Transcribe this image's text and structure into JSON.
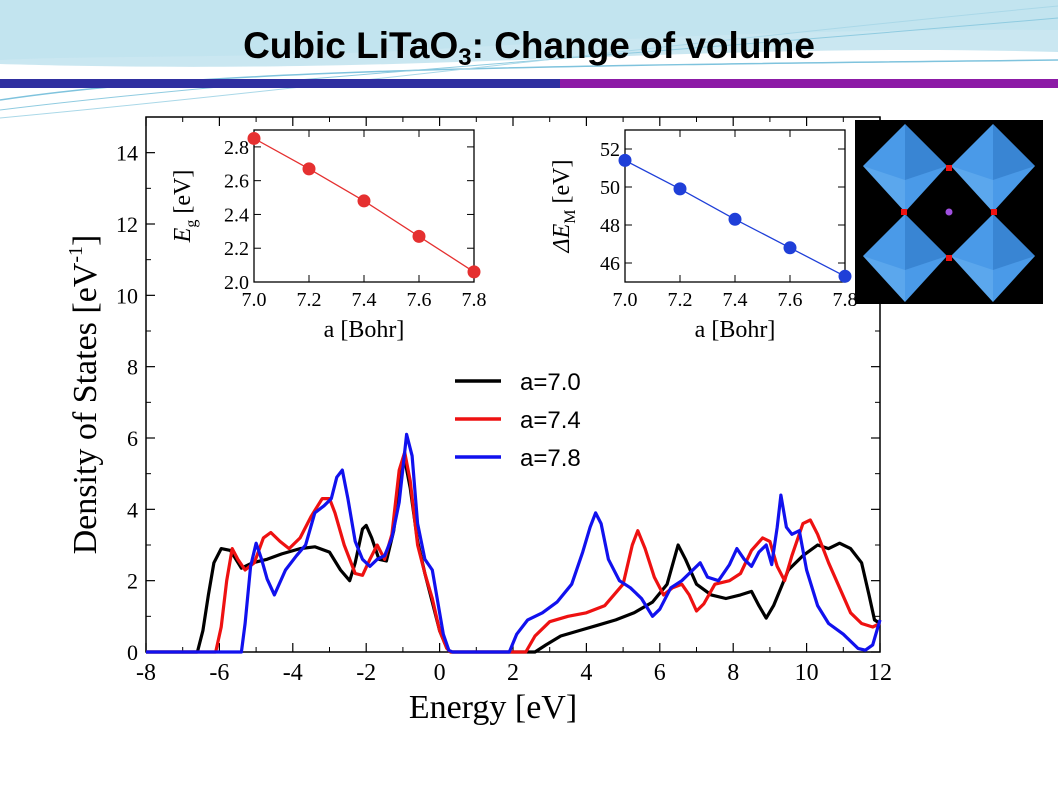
{
  "slide": {
    "title_main": "Cubic LiTaO",
    "title_sub": "3",
    "title_rest": ": Change of volume"
  },
  "colors": {
    "a70": "#000000",
    "a74": "#ee1111",
    "a78": "#1111ee",
    "inset_red": "#e53030",
    "inset_blue": "#1f3fd8",
    "bar_blue": "#2f2fa0",
    "bar_purple": "#8c1aa6",
    "octahedron": "#4a9ae8",
    "structure_bg": "#000000"
  },
  "chart_data": [
    {
      "type": "line",
      "title": "",
      "xlabel": "Energy  [eV]",
      "ylabel": "Density of States  [eV",
      "ylabel_sup": "-1",
      "ylabel_close": "]",
      "xlim": [
        -8,
        12
      ],
      "ylim": [
        0,
        15
      ],
      "xticks": [
        "-8",
        "-6",
        "-4",
        "-2",
        "0",
        "2",
        "4",
        "6",
        "8",
        "10",
        "12"
      ],
      "yticks": [
        "0",
        "2",
        "4",
        "6",
        "8",
        "10",
        "12",
        "14"
      ],
      "legend": "center",
      "series": [
        {
          "name": "a=7.0",
          "color_key": "a70",
          "points": [
            [
              -8,
              0
            ],
            [
              -6.6,
              0
            ],
            [
              -6.45,
              0.6
            ],
            [
              -6.3,
              1.6
            ],
            [
              -6.15,
              2.5
            ],
            [
              -5.95,
              2.9
            ],
            [
              -5.7,
              2.85
            ],
            [
              -5.4,
              2.35
            ],
            [
              -5.1,
              2.5
            ],
            [
              -4.7,
              2.6
            ],
            [
              -4.3,
              2.75
            ],
            [
              -3.8,
              2.9
            ],
            [
              -3.4,
              2.95
            ],
            [
              -3.0,
              2.8
            ],
            [
              -2.7,
              2.3
            ],
            [
              -2.45,
              2.0
            ],
            [
              -2.3,
              2.5
            ],
            [
              -2.1,
              3.45
            ],
            [
              -2.0,
              3.55
            ],
            [
              -1.85,
              3.2
            ],
            [
              -1.65,
              2.6
            ],
            [
              -1.45,
              2.55
            ],
            [
              -1.25,
              3.4
            ],
            [
              -1.05,
              5.0
            ],
            [
              -0.95,
              5.4
            ],
            [
              -0.8,
              4.6
            ],
            [
              -0.6,
              3.1
            ],
            [
              -0.4,
              2.2
            ],
            [
              -0.2,
              1.4
            ],
            [
              0,
              0.6
            ],
            [
              0.2,
              0.1
            ],
            [
              0.3,
              0
            ],
            [
              2.6,
              0
            ],
            [
              2.9,
              0.2
            ],
            [
              3.3,
              0.45
            ],
            [
              3.8,
              0.6
            ],
            [
              4.3,
              0.75
            ],
            [
              4.8,
              0.9
            ],
            [
              5.3,
              1.1
            ],
            [
              5.8,
              1.4
            ],
            [
              6.2,
              1.9
            ],
            [
              6.5,
              3.0
            ],
            [
              6.7,
              2.6
            ],
            [
              7.0,
              1.9
            ],
            [
              7.4,
              1.6
            ],
            [
              7.8,
              1.5
            ],
            [
              8.2,
              1.6
            ],
            [
              8.5,
              1.7
            ],
            [
              8.7,
              1.3
            ],
            [
              8.9,
              0.95
            ],
            [
              9.1,
              1.3
            ],
            [
              9.5,
              2.3
            ],
            [
              9.9,
              2.7
            ],
            [
              10.3,
              3.0
            ],
            [
              10.6,
              2.9
            ],
            [
              10.9,
              3.05
            ],
            [
              11.2,
              2.9
            ],
            [
              11.5,
              2.5
            ],
            [
              11.7,
              1.6
            ],
            [
              11.85,
              0.9
            ],
            [
              12,
              0.8
            ]
          ]
        },
        {
          "name": "a=7.4",
          "color_key": "a74",
          "points": [
            [
              -8,
              0
            ],
            [
              -6.1,
              0
            ],
            [
              -5.95,
              0.7
            ],
            [
              -5.8,
              2.0
            ],
            [
              -5.65,
              2.9
            ],
            [
              -5.5,
              2.6
            ],
            [
              -5.3,
              2.3
            ],
            [
              -5.05,
              2.5
            ],
            [
              -4.8,
              3.2
            ],
            [
              -4.6,
              3.35
            ],
            [
              -4.35,
              3.1
            ],
            [
              -4.1,
              2.9
            ],
            [
              -3.8,
              3.2
            ],
            [
              -3.5,
              3.8
            ],
            [
              -3.2,
              4.3
            ],
            [
              -3.0,
              4.3
            ],
            [
              -2.85,
              3.9
            ],
            [
              -2.6,
              3.0
            ],
            [
              -2.3,
              2.2
            ],
            [
              -2.1,
              2.15
            ],
            [
              -1.9,
              2.6
            ],
            [
              -1.7,
              3.0
            ],
            [
              -1.5,
              2.6
            ],
            [
              -1.3,
              3.3
            ],
            [
              -1.1,
              5.1
            ],
            [
              -0.95,
              5.6
            ],
            [
              -0.8,
              4.8
            ],
            [
              -0.6,
              3.0
            ],
            [
              -0.4,
              2.2
            ],
            [
              -0.2,
              1.5
            ],
            [
              0,
              0.6
            ],
            [
              0.2,
              0.1
            ],
            [
              0.3,
              0
            ],
            [
              2.35,
              0
            ],
            [
              2.6,
              0.45
            ],
            [
              3.0,
              0.85
            ],
            [
              3.5,
              1.0
            ],
            [
              4.0,
              1.1
            ],
            [
              4.5,
              1.3
            ],
            [
              5.0,
              1.9
            ],
            [
              5.25,
              3.0
            ],
            [
              5.4,
              3.4
            ],
            [
              5.6,
              2.9
            ],
            [
              5.85,
              2.1
            ],
            [
              6.1,
              1.6
            ],
            [
              6.35,
              1.8
            ],
            [
              6.6,
              1.9
            ],
            [
              6.8,
              1.6
            ],
            [
              7.0,
              1.15
            ],
            [
              7.2,
              1.35
            ],
            [
              7.5,
              1.9
            ],
            [
              7.9,
              2.0
            ],
            [
              8.2,
              2.2
            ],
            [
              8.5,
              2.85
            ],
            [
              8.8,
              3.2
            ],
            [
              9.0,
              3.1
            ],
            [
              9.2,
              2.4
            ],
            [
              9.4,
              2.0
            ],
            [
              9.6,
              2.7
            ],
            [
              9.9,
              3.6
            ],
            [
              10.1,
              3.7
            ],
            [
              10.3,
              3.3
            ],
            [
              10.6,
              2.5
            ],
            [
              10.9,
              1.8
            ],
            [
              11.2,
              1.1
            ],
            [
              11.5,
              0.8
            ],
            [
              11.8,
              0.7
            ],
            [
              12,
              0.8
            ]
          ]
        },
        {
          "name": "a=7.8",
          "color_key": "a78",
          "points": [
            [
              -8,
              0
            ],
            [
              -5.4,
              0
            ],
            [
              -5.3,
              0.8
            ],
            [
              -5.15,
              2.4
            ],
            [
              -5.0,
              3.05
            ],
            [
              -4.85,
              2.6
            ],
            [
              -4.7,
              2.05
            ],
            [
              -4.5,
              1.6
            ],
            [
              -4.2,
              2.3
            ],
            [
              -3.9,
              2.7
            ],
            [
              -3.65,
              3.0
            ],
            [
              -3.4,
              3.9
            ],
            [
              -3.15,
              4.1
            ],
            [
              -2.95,
              4.3
            ],
            [
              -2.8,
              4.9
            ],
            [
              -2.65,
              5.1
            ],
            [
              -2.5,
              4.3
            ],
            [
              -2.3,
              3.1
            ],
            [
              -2.1,
              2.6
            ],
            [
              -1.9,
              2.4
            ],
            [
              -1.7,
              2.6
            ],
            [
              -1.5,
              2.7
            ],
            [
              -1.3,
              3.2
            ],
            [
              -1.1,
              4.2
            ],
            [
              -0.9,
              6.1
            ],
            [
              -0.75,
              5.5
            ],
            [
              -0.6,
              3.6
            ],
            [
              -0.4,
              2.6
            ],
            [
              -0.2,
              2.3
            ],
            [
              -0.05,
              1.4
            ],
            [
              0.1,
              0.5
            ],
            [
              0.25,
              0.05
            ],
            [
              0.35,
              0
            ],
            [
              1.9,
              0
            ],
            [
              2.1,
              0.5
            ],
            [
              2.4,
              0.9
            ],
            [
              2.8,
              1.1
            ],
            [
              3.2,
              1.4
            ],
            [
              3.6,
              1.9
            ],
            [
              3.9,
              2.8
            ],
            [
              4.1,
              3.5
            ],
            [
              4.25,
              3.9
            ],
            [
              4.4,
              3.6
            ],
            [
              4.6,
              2.6
            ],
            [
              4.9,
              2.0
            ],
            [
              5.2,
              1.8
            ],
            [
              5.5,
              1.5
            ],
            [
              5.8,
              1.0
            ],
            [
              6.0,
              1.2
            ],
            [
              6.3,
              1.8
            ],
            [
              6.6,
              2.0
            ],
            [
              6.9,
              2.3
            ],
            [
              7.1,
              2.5
            ],
            [
              7.3,
              2.1
            ],
            [
              7.6,
              2.0
            ],
            [
              7.9,
              2.45
            ],
            [
              8.1,
              2.9
            ],
            [
              8.3,
              2.6
            ],
            [
              8.5,
              2.4
            ],
            [
              8.7,
              2.8
            ],
            [
              8.9,
              3.0
            ],
            [
              9.05,
              2.45
            ],
            [
              9.2,
              3.5
            ],
            [
              9.3,
              4.4
            ],
            [
              9.45,
              3.5
            ],
            [
              9.6,
              3.3
            ],
            [
              9.8,
              3.4
            ],
            [
              10.0,
              2.3
            ],
            [
              10.3,
              1.3
            ],
            [
              10.6,
              0.8
            ],
            [
              11.0,
              0.5
            ],
            [
              11.4,
              0.1
            ],
            [
              11.6,
              0.05
            ],
            [
              11.8,
              0.2
            ],
            [
              12,
              0.9
            ]
          ]
        }
      ]
    },
    {
      "type": "line",
      "title": "",
      "xlabel": "a [Bohr]",
      "ylabel_main": "E",
      "ylabel_sub": "g",
      "ylabel_unit": "[eV]",
      "xlim": [
        7.0,
        7.8
      ],
      "ylim": [
        2.0,
        2.9
      ],
      "xticks": [
        "7.0",
        "7.2",
        "7.4",
        "7.6",
        "7.8"
      ],
      "yticks": [
        "2.0",
        "2.2",
        "2.4",
        "2.6",
        "2.8"
      ],
      "x": [
        7.0,
        7.2,
        7.4,
        7.6,
        7.8
      ],
      "y": [
        2.85,
        2.67,
        2.48,
        2.27,
        2.06
      ]
    },
    {
      "type": "line",
      "title": "",
      "xlabel": "a [Bohr]",
      "ylabel_main": "ΔE",
      "ylabel_sub": "M",
      "ylabel_unit": "[eV]",
      "xlim": [
        7.0,
        7.8
      ],
      "ylim": [
        45,
        53
      ],
      "xticks": [
        "7.0",
        "7.2",
        "7.4",
        "7.6",
        "7.8"
      ],
      "yticks": [
        "46",
        "48",
        "50",
        "52"
      ],
      "x": [
        7.0,
        7.2,
        7.4,
        7.6,
        7.8
      ],
      "y": [
        51.4,
        49.9,
        48.3,
        46.8,
        45.3
      ]
    }
  ]
}
